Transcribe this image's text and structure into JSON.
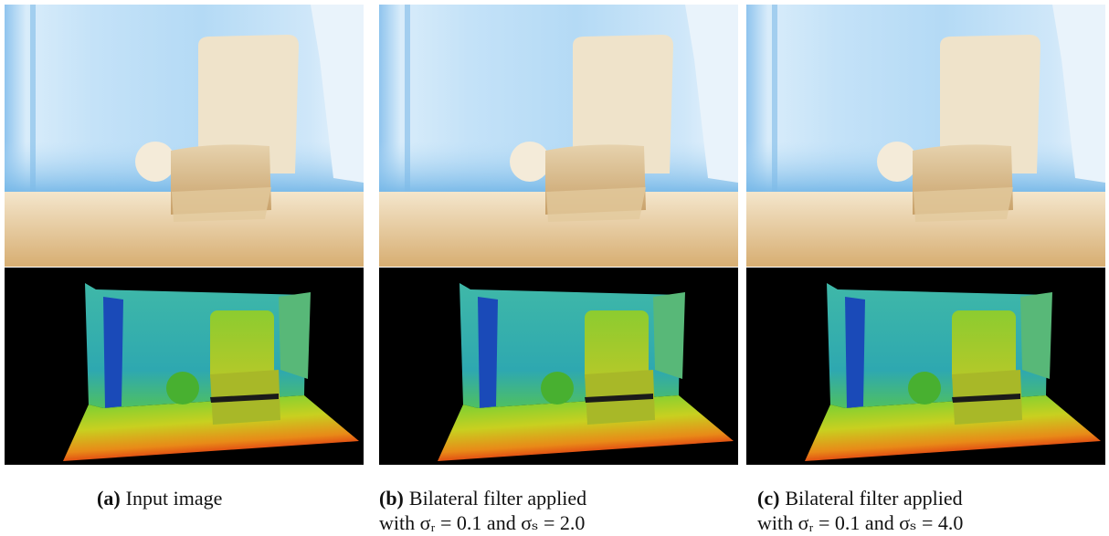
{
  "figures": [
    {
      "label": "(a)",
      "caption": [
        "Input image"
      ]
    },
    {
      "label": "(b)",
      "caption": [
        "Bilateral filter applied",
        "with σᵣ = 0.1 and σₛ = 2.0"
      ]
    },
    {
      "label": "(c)",
      "caption": [
        "Bilateral filter applied",
        "with σᵣ = 0.1 and σₛ = 4.0"
      ]
    }
  ]
}
